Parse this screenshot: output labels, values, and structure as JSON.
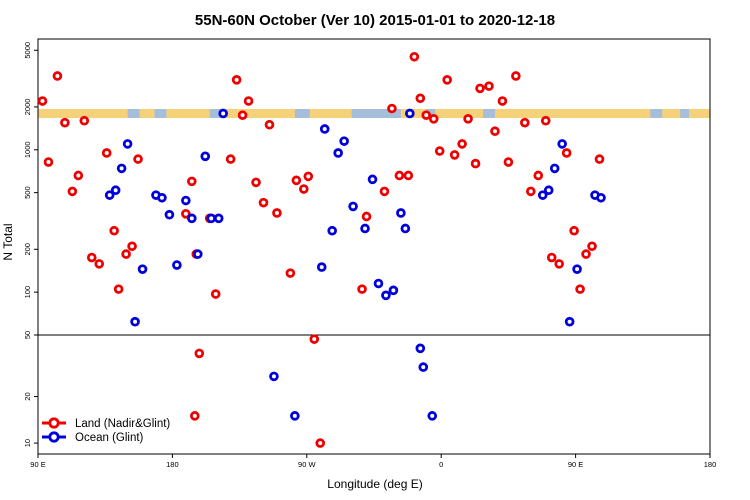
{
  "colors": {
    "land": "#ee0000",
    "ocean": "#0000dd",
    "band_land": "#f5d27a",
    "band_ocean": "#a7bedb"
  },
  "chart_data": {
    "type": "scatter",
    "title": "55N-60N October (Ver 10)   2015-01-01 to 2020-12-18",
    "xlabel": "Longitude (deg E)",
    "ylabel": "N Total",
    "x_ticks": [
      {
        "value": 90,
        "label": "90 E"
      },
      {
        "value": 180,
        "label": "180"
      },
      {
        "value": 270,
        "label": "90 W"
      },
      {
        "value": 360,
        "label": "0"
      },
      {
        "value": 450,
        "label": "90 E"
      },
      {
        "value": 540,
        "label": "180"
      }
    ],
    "xlim": [
      90,
      540
    ],
    "y_scale": "log",
    "y_ticks_upper": [
      {
        "value": 50,
        "label": "50"
      },
      {
        "value": 100,
        "label": "100"
      },
      {
        "value": 200,
        "label": "200"
      },
      {
        "value": 500,
        "label": "500"
      },
      {
        "value": 1000,
        "label": "1000"
      },
      {
        "value": 2000,
        "label": "2000"
      },
      {
        "value": 5000,
        "label": "5000"
      }
    ],
    "y_ticks_lower": [
      {
        "value": 10,
        "label": "10"
      },
      {
        "value": 20,
        "label": "20"
      }
    ],
    "ylim_upper": [
      50,
      6000
    ],
    "ylim_lower": [
      8.5,
      50
    ],
    "legend_position": "bottom-left",
    "series": [
      {
        "name": "Land (Nadir&Glint)",
        "color_key": "land",
        "points": [
          [
            93,
            2200
          ],
          [
            97,
            820
          ],
          [
            103,
            3300
          ],
          [
            108,
            1550
          ],
          [
            113,
            510
          ],
          [
            117,
            660
          ],
          [
            121,
            1600
          ],
          [
            126,
            175
          ],
          [
            131,
            158
          ],
          [
            136,
            950
          ],
          [
            141,
            270
          ],
          [
            144,
            105
          ],
          [
            149,
            185
          ],
          [
            153,
            210
          ],
          [
            157,
            860
          ],
          [
            189,
            355
          ],
          [
            193,
            600
          ],
          [
            196,
            185
          ],
          [
            205,
            330
          ],
          [
            209,
            97
          ],
          [
            219,
            860
          ],
          [
            223,
            3100
          ],
          [
            227,
            1750
          ],
          [
            231,
            2200
          ],
          [
            236,
            590
          ],
          [
            241,
            425
          ],
          [
            245,
            1500
          ],
          [
            250,
            360
          ],
          [
            259,
            136
          ],
          [
            263,
            610
          ],
          [
            268,
            530
          ],
          [
            271,
            650
          ],
          [
            307,
            105
          ],
          [
            310,
            340
          ],
          [
            322,
            510
          ],
          [
            327,
            1950
          ],
          [
            332,
            660
          ],
          [
            338,
            660
          ],
          [
            342,
            4500
          ],
          [
            346,
            2300
          ],
          [
            350,
            1750
          ],
          [
            355,
            1650
          ],
          [
            359,
            980
          ],
          [
            364,
            3100
          ],
          [
            369,
            920
          ],
          [
            374,
            1100
          ],
          [
            378,
            1650
          ],
          [
            383,
            800
          ],
          [
            386,
            2700
          ],
          [
            392,
            2800
          ],
          [
            396,
            1350
          ],
          [
            401,
            2200
          ],
          [
            405,
            820
          ],
          [
            410,
            3300
          ],
          [
            416,
            1550
          ],
          [
            420,
            510
          ],
          [
            425,
            660
          ],
          [
            430,
            1600
          ],
          [
            434,
            175
          ],
          [
            439,
            158
          ],
          [
            444,
            950
          ],
          [
            449,
            270
          ],
          [
            453,
            105
          ],
          [
            457,
            185
          ],
          [
            461,
            210
          ],
          [
            466,
            860
          ],
          [
            195,
            15
          ],
          [
            198,
            38
          ],
          [
            275,
            47
          ],
          [
            279,
            10
          ]
        ]
      },
      {
        "name": "Ocean (Glint)",
        "color_key": "ocean",
        "points": [
          [
            138,
            480
          ],
          [
            142,
            520
          ],
          [
            146,
            740
          ],
          [
            150,
            1100
          ],
          [
            155,
            62
          ],
          [
            160,
            145
          ],
          [
            169,
            480
          ],
          [
            173,
            460
          ],
          [
            178,
            350
          ],
          [
            183,
            155
          ],
          [
            189,
            440
          ],
          [
            193,
            330
          ],
          [
            197,
            185
          ],
          [
            202,
            900
          ],
          [
            206,
            330
          ],
          [
            211,
            330
          ],
          [
            214,
            1800
          ],
          [
            280,
            150
          ],
          [
            282,
            1400
          ],
          [
            287,
            270
          ],
          [
            291,
            950
          ],
          [
            295,
            1150
          ],
          [
            301,
            400
          ],
          [
            309,
            280
          ],
          [
            314,
            620
          ],
          [
            318,
            115
          ],
          [
            323,
            95
          ],
          [
            328,
            103
          ],
          [
            333,
            360
          ],
          [
            336,
            280
          ],
          [
            339,
            1800
          ],
          [
            428,
            480
          ],
          [
            432,
            520
          ],
          [
            436,
            740
          ],
          [
            441,
            1100
          ],
          [
            446,
            62
          ],
          [
            451,
            145
          ],
          [
            463,
            480
          ],
          [
            467,
            460
          ],
          [
            248,
            27
          ],
          [
            262,
            15
          ],
          [
            346,
            41
          ],
          [
            348,
            31
          ],
          [
            354,
            15
          ]
        ]
      }
    ],
    "legend": [
      {
        "label": "Land (Nadir&Glint)",
        "color_key": "land"
      },
      {
        "label": "Ocean (Glint)",
        "color_key": "ocean"
      }
    ]
  }
}
